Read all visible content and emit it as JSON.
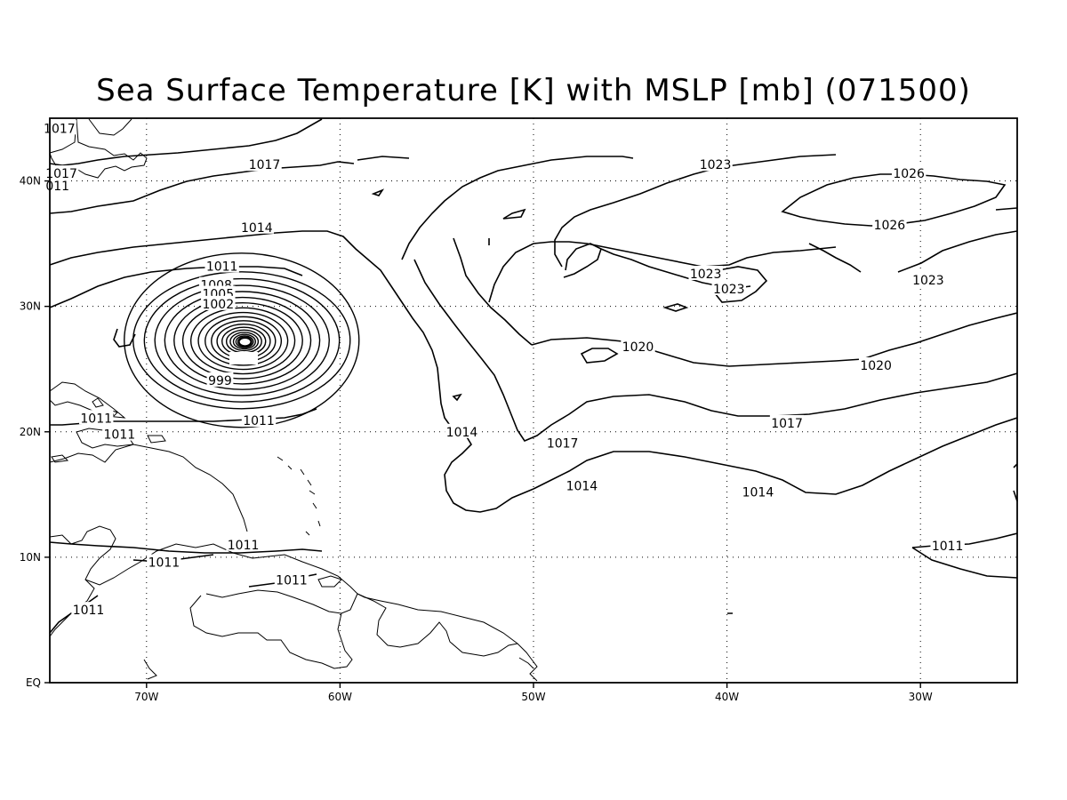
{
  "title": "Sea Surface Temperature [K] with MSLP [mb] (071500)",
  "axes": {
    "lon_ticks": [
      "70W",
      "60W",
      "50W",
      "40W",
      "30W"
    ],
    "lat_ticks": [
      "40N",
      "30N",
      "20N",
      "10N",
      "EQ"
    ],
    "lon_range": [
      -75,
      -25
    ],
    "lat_range": [
      0,
      45
    ],
    "grid": "dotted"
  },
  "contour_labels": [
    {
      "text": "1017",
      "lon": -74.5,
      "lat": 44.2
    },
    {
      "text": "1017",
      "lon": -74.4,
      "lat": 40.6
    },
    {
      "text": "011",
      "lon": -74.6,
      "lat": 39.6
    },
    {
      "text": "1017",
      "lon": -63.9,
      "lat": 41.3
    },
    {
      "text": "1014",
      "lon": -64.3,
      "lat": 36.3
    },
    {
      "text": "1011",
      "lon": -66.1,
      "lat": 33.2
    },
    {
      "text": "1008",
      "lon": -66.4,
      "lat": 31.7
    },
    {
      "text": "1005",
      "lon": -66.3,
      "lat": 31.0
    },
    {
      "text": "1002",
      "lon": -66.3,
      "lat": 30.2
    },
    {
      "text": "999",
      "lon": -66.2,
      "lat": 24.1
    },
    {
      "text": "1011",
      "lon": -64.2,
      "lat": 20.9
    },
    {
      "text": "1011",
      "lon": -72.6,
      "lat": 21.1
    },
    {
      "text": "1011",
      "lon": -71.4,
      "lat": 19.8
    },
    {
      "text": "1014",
      "lon": -53.7,
      "lat": 20.0
    },
    {
      "text": "1017",
      "lon": -48.5,
      "lat": 19.1
    },
    {
      "text": "1014",
      "lon": -47.5,
      "lat": 15.7
    },
    {
      "text": "1011",
      "lon": -65.0,
      "lat": 11.0
    },
    {
      "text": "1011",
      "lon": -69.1,
      "lat": 9.6
    },
    {
      "text": "1011",
      "lon": -62.5,
      "lat": 8.2
    },
    {
      "text": "1011",
      "lon": -73.0,
      "lat": 5.8
    },
    {
      "text": "1020",
      "lon": -44.6,
      "lat": 26.8
    },
    {
      "text": "1023",
      "lon": -40.6,
      "lat": 41.3
    },
    {
      "text": "1023",
      "lon": -41.1,
      "lat": 32.6
    },
    {
      "text": "1023",
      "lon": -39.9,
      "lat": 31.4
    },
    {
      "text": "1026",
      "lon": -30.6,
      "lat": 40.6
    },
    {
      "text": "1026",
      "lon": -31.6,
      "lat": 36.5
    },
    {
      "text": "1023",
      "lon": -29.6,
      "lat": 32.1
    },
    {
      "text": "1020",
      "lon": -32.3,
      "lat": 25.3
    },
    {
      "text": "1017",
      "lon": -36.9,
      "lat": 20.7
    },
    {
      "text": "1014",
      "lon": -38.4,
      "lat": 15.2
    },
    {
      "text": "1011",
      "lon": -28.6,
      "lat": 10.9
    }
  ],
  "low_center": {
    "lon": -64.9,
    "lat": 27.3,
    "rings": 18
  }
}
